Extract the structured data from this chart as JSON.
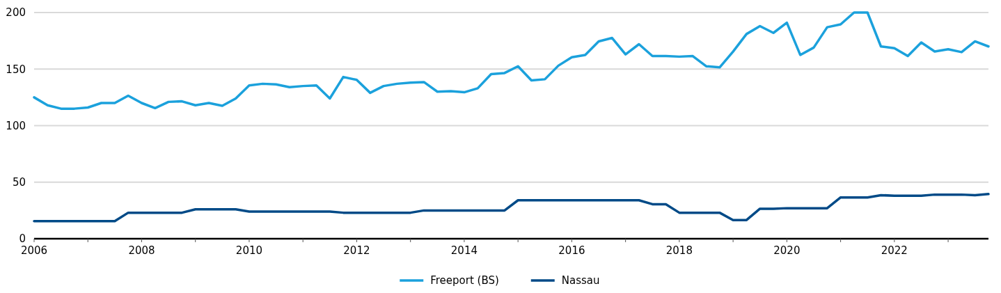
{
  "chart_data": {
    "type": "line",
    "x": [
      2006,
      2006.25,
      2006.5,
      2006.75,
      2007,
      2007.25,
      2007.5,
      2007.75,
      2008,
      2008.25,
      2008.5,
      2008.75,
      2009,
      2009.25,
      2009.5,
      2009.75,
      2010,
      2010.25,
      2010.5,
      2010.75,
      2011,
      2011.25,
      2011.5,
      2011.75,
      2012,
      2012.25,
      2012.5,
      2012.75,
      2013,
      2013.25,
      2013.5,
      2013.75,
      2014,
      2014.25,
      2014.5,
      2014.75,
      2015,
      2015.25,
      2015.5,
      2015.75,
      2016,
      2016.25,
      2016.5,
      2016.75,
      2017,
      2017.25,
      2017.5,
      2017.75,
      2018,
      2018.25,
      2018.5,
      2018.75,
      2019,
      2019.25,
      2019.5,
      2019.75,
      2020,
      2020.25,
      2020.5,
      2020.75,
      2021,
      2021.25,
      2021.5,
      2021.75,
      2022,
      2022.25,
      2022.5,
      2022.75,
      2023,
      2023.25,
      2023.5,
      2023.75
    ],
    "series": [
      {
        "name": "Freeport (BS)",
        "color": "#1ba1dc",
        "values": [
          125,
          118,
          115,
          115,
          116,
          120,
          120,
          126.5,
          120,
          115.5,
          121,
          121.5,
          118,
          120,
          117.5,
          124,
          135.5,
          137,
          136.5,
          134,
          135,
          135.5,
          124,
          143,
          140.5,
          129,
          135,
          137,
          138,
          138.5,
          130,
          130.5,
          129.5,
          133,
          145.5,
          146.5,
          152.5,
          140,
          141,
          153,
          160.5,
          162.5,
          174.5,
          177.5,
          163,
          172,
          161.5,
          161.5,
          161,
          161.5,
          152.5,
          151.5,
          165.5,
          181,
          188,
          182,
          191,
          162.5,
          169,
          187,
          189.5,
          200,
          200,
          170,
          168.5,
          161.5,
          173.5,
          165.5,
          167.5,
          165,
          174.5,
          170
        ]
      },
      {
        "name": "Nassau",
        "color": "#004a87",
        "values": [
          15.5,
          15.5,
          15.5,
          15.5,
          15.5,
          15.5,
          15.5,
          23,
          23,
          23,
          23,
          23,
          26,
          26,
          26,
          26,
          24,
          24,
          24,
          24,
          24,
          24,
          24,
          23,
          23,
          23,
          23,
          23,
          23,
          25,
          25,
          25,
          25,
          25,
          25,
          25,
          34,
          34,
          34,
          34,
          34,
          34,
          34,
          34,
          34,
          34,
          30.5,
          30.5,
          23,
          23,
          23,
          23,
          16.5,
          16.5,
          26.5,
          26.5,
          27,
          27,
          27,
          27,
          36.5,
          36.5,
          36.5,
          38.5,
          38,
          38,
          38,
          39,
          39,
          39,
          38.5,
          39.5
        ]
      }
    ],
    "xlim": [
      2006,
      2023.75
    ],
    "xticks": [
      2006,
      {
        "value": 2007,
        "label": null
      },
      2008,
      {
        "value": 2009,
        "label": null
      },
      2010,
      {
        "value": 2011,
        "label": null
      },
      2012,
      {
        "value": 2013,
        "label": null
      },
      2014,
      {
        "value": 2015,
        "label": null
      },
      2016,
      {
        "value": 2017,
        "label": null
      },
      2018,
      {
        "value": 2019,
        "label": null
      },
      2020,
      {
        "value": 2021,
        "label": null
      },
      2022,
      {
        "value": 2023,
        "label": null
      }
    ],
    "ylim": [
      0,
      200
    ],
    "yticks": [
      0,
      50,
      100,
      150,
      200
    ],
    "grid": "y",
    "legend": "bottom",
    "line_style": "solid",
    "marker": "none"
  }
}
